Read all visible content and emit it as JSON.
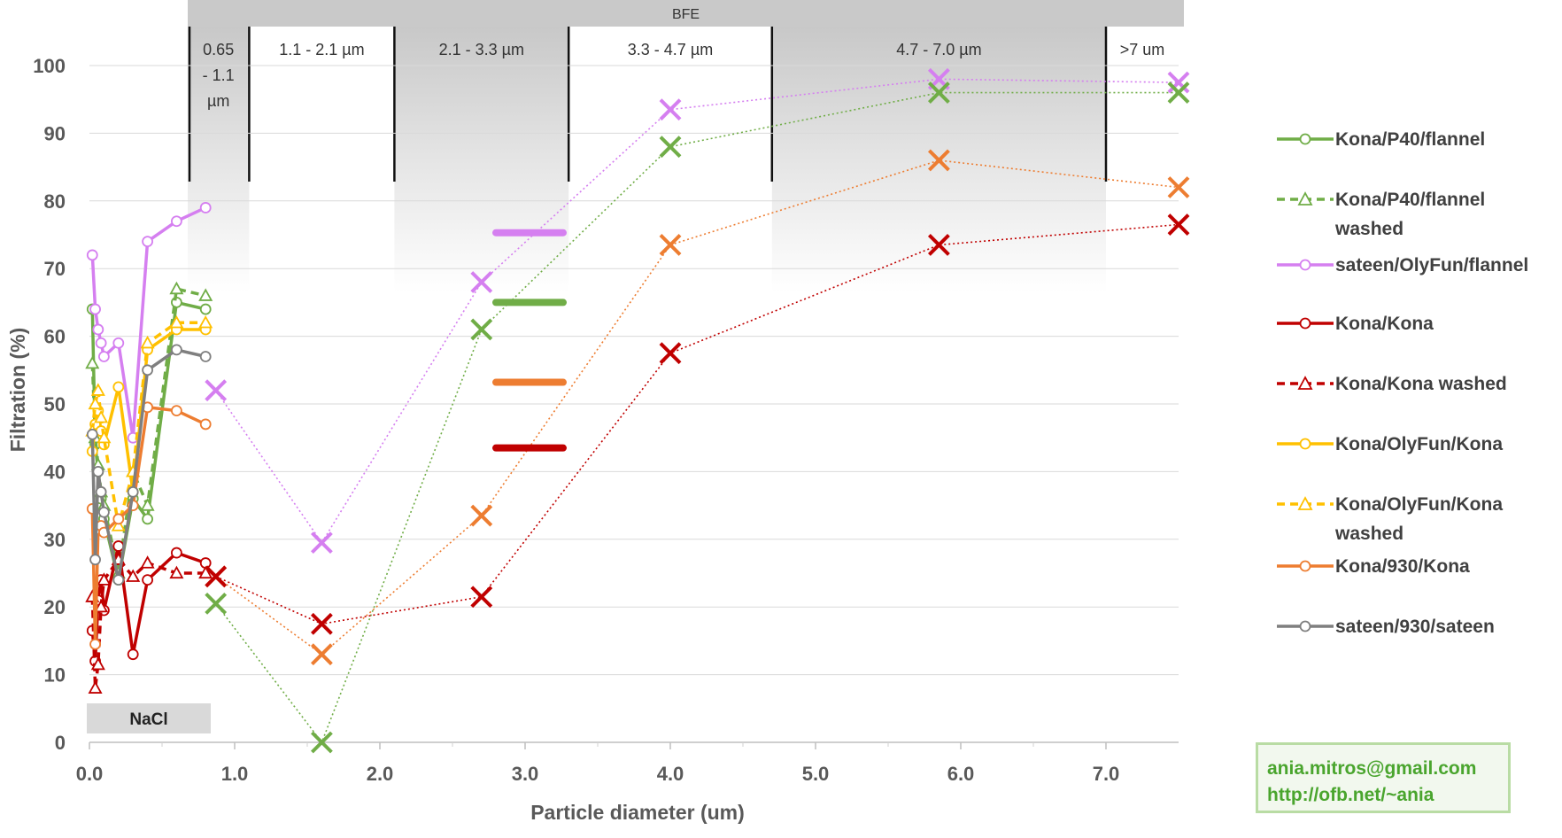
{
  "chart_data": {
    "type": "line",
    "xlabel": "Particle diameter (um)",
    "ylabel": "Filtration (%)",
    "xlim": [
      0,
      7.5
    ],
    "ylim": [
      0,
      100
    ],
    "x_ticks": [
      "0.0",
      "1.0",
      "2.0",
      "3.0",
      "4.0",
      "5.0",
      "6.0",
      "7.0"
    ],
    "y_ticks": [
      "0",
      "10",
      "20",
      "30",
      "40",
      "50",
      "60",
      "70",
      "80",
      "90",
      "100"
    ],
    "grid": "horizontal",
    "bfe_title": "BFE",
    "nacl_label": "NaCl",
    "bfe_bands": [
      {
        "label": [
          "0.65",
          "- 1.1",
          "µm"
        ],
        "from": 0.65,
        "to": 1.1
      },
      {
        "label": [
          "1.1 - 2.1 µm"
        ],
        "from": 1.1,
        "to": 2.1
      },
      {
        "label": [
          "2.1 - 3.3 µm"
        ],
        "from": 2.1,
        "to": 3.3
      },
      {
        "label": [
          "3.3 - 4.7 µm"
        ],
        "from": 3.3,
        "to": 4.7
      },
      {
        "label": [
          "4.7 - 7.0 µm"
        ],
        "from": 4.7,
        "to": 7.0
      },
      {
        "label": [
          ">7 um"
        ],
        "from": 7.0,
        "to": 7.5
      }
    ],
    "series": [
      {
        "name": "Kona/P40/flannel",
        "color": "#70ad47",
        "style": "solid",
        "marker": "circle",
        "points": [
          [
            0.02,
            64
          ],
          [
            0.04,
            44
          ],
          [
            0.06,
            40
          ],
          [
            0.08,
            36
          ],
          [
            0.1,
            33
          ],
          [
            0.2,
            24
          ],
          [
            0.3,
            36
          ],
          [
            0.4,
            33
          ],
          [
            0.6,
            65
          ],
          [
            0.8,
            64
          ]
        ]
      },
      {
        "name": "Kona/P40/flannel washed",
        "color": "#70ad47",
        "style": "dashed",
        "marker": "triangle",
        "points": [
          [
            0.02,
            56
          ],
          [
            0.04,
            45
          ],
          [
            0.06,
            41
          ],
          [
            0.08,
            37
          ],
          [
            0.1,
            35
          ],
          [
            0.2,
            25
          ],
          [
            0.3,
            40
          ],
          [
            0.4,
            35
          ],
          [
            0.6,
            67
          ],
          [
            0.8,
            66
          ]
        ]
      },
      {
        "name": "sateen/OlyFun/flannel",
        "color": "#d57ff0",
        "style": "solid",
        "marker": "circle",
        "points": [
          [
            0.02,
            72
          ],
          [
            0.04,
            64
          ],
          [
            0.06,
            61
          ],
          [
            0.08,
            59
          ],
          [
            0.1,
            57
          ],
          [
            0.2,
            59
          ],
          [
            0.3,
            45
          ],
          [
            0.4,
            74
          ],
          [
            0.6,
            77
          ],
          [
            0.8,
            79
          ]
        ]
      },
      {
        "name": "Kona/Kona",
        "color": "#c00000",
        "style": "solid",
        "marker": "circle",
        "points": [
          [
            0.02,
            16.5
          ],
          [
            0.04,
            12
          ],
          [
            0.06,
            21
          ],
          [
            0.08,
            24
          ],
          [
            0.1,
            19.5
          ],
          [
            0.2,
            29
          ],
          [
            0.3,
            13
          ],
          [
            0.4,
            24
          ],
          [
            0.6,
            28
          ],
          [
            0.8,
            26.5
          ]
        ]
      },
      {
        "name": "Kona/Kona washed",
        "color": "#c00000",
        "style": "dashed",
        "marker": "triangle",
        "points": [
          [
            0.02,
            21.5
          ],
          [
            0.04,
            8
          ],
          [
            0.06,
            11.5
          ],
          [
            0.08,
            20
          ],
          [
            0.1,
            24
          ],
          [
            0.2,
            27
          ],
          [
            0.3,
            24.5
          ],
          [
            0.4,
            26.5
          ],
          [
            0.6,
            25
          ],
          [
            0.8,
            25
          ]
        ]
      },
      {
        "name": "Kona/OlyFun/Kona",
        "color": "#ffc000",
        "style": "solid",
        "marker": "circle",
        "points": [
          [
            0.02,
            43
          ],
          [
            0.04,
            47
          ],
          [
            0.06,
            49
          ],
          [
            0.08,
            46
          ],
          [
            0.1,
            44
          ],
          [
            0.2,
            52.5
          ],
          [
            0.3,
            37
          ],
          [
            0.4,
            58
          ],
          [
            0.6,
            61
          ],
          [
            0.8,
            61
          ]
        ]
      },
      {
        "name": "Kona/OlyFun/Kona washed",
        "color": "#ffc000",
        "style": "dashed",
        "marker": "triangle",
        "points": [
          [
            0.02,
            46
          ],
          [
            0.04,
            50
          ],
          [
            0.06,
            52
          ],
          [
            0.08,
            48
          ],
          [
            0.1,
            45
          ],
          [
            0.2,
            32
          ],
          [
            0.3,
            40
          ],
          [
            0.4,
            59
          ],
          [
            0.6,
            62
          ],
          [
            0.8,
            62
          ]
        ]
      },
      {
        "name": "Kona/930/Kona",
        "color": "#ed7d31",
        "style": "solid",
        "marker": "circle",
        "points": [
          [
            0.02,
            34.5
          ],
          [
            0.04,
            14.5
          ],
          [
            0.06,
            31.5
          ],
          [
            0.08,
            32
          ],
          [
            0.1,
            31
          ],
          [
            0.2,
            33
          ],
          [
            0.3,
            35
          ],
          [
            0.4,
            49.5
          ],
          [
            0.6,
            49
          ],
          [
            0.8,
            47
          ]
        ]
      },
      {
        "name": "sateen/930/sateen",
        "color": "#7f7f7f",
        "style": "solid",
        "marker": "circle",
        "points": [
          [
            0.02,
            45.5
          ],
          [
            0.04,
            27
          ],
          [
            0.06,
            40
          ],
          [
            0.08,
            37
          ],
          [
            0.1,
            34
          ],
          [
            0.2,
            24
          ],
          [
            0.3,
            37
          ],
          [
            0.4,
            55
          ],
          [
            0.6,
            58
          ],
          [
            0.8,
            57
          ]
        ]
      }
    ],
    "bfe_series": [
      {
        "color": "#d57ff0",
        "points": [
          [
            0.87,
            52
          ],
          [
            1.6,
            29.5
          ],
          [
            2.7,
            68
          ],
          [
            4.0,
            93.5
          ],
          [
            5.85,
            98
          ],
          [
            7.5,
            97.5
          ]
        ]
      },
      {
        "color": "#70ad47",
        "points": [
          [
            0.87,
            20.5
          ],
          [
            1.6,
            0
          ],
          [
            2.7,
            61
          ],
          [
            4.0,
            88
          ],
          [
            5.85,
            96
          ],
          [
            7.5,
            96
          ]
        ]
      },
      {
        "color": "#ed7d31",
        "points": [
          [
            0.87,
            24.5
          ],
          [
            1.6,
            13
          ],
          [
            2.7,
            33.5
          ],
          [
            4.0,
            73.5
          ],
          [
            5.85,
            86
          ],
          [
            7.5,
            82
          ]
        ]
      },
      {
        "color": "#c00000",
        "points": [
          [
            0.87,
            24.5
          ],
          [
            1.6,
            17.5
          ],
          [
            2.7,
            21.5
          ],
          [
            4.0,
            57.5
          ],
          [
            5.85,
            73.5
          ],
          [
            7.5,
            76.5
          ]
        ]
      }
    ],
    "average_bars": [
      {
        "color": "#d57ff0",
        "value": 75.3
      },
      {
        "color": "#70ad47",
        "value": 65
      },
      {
        "color": "#ed7d31",
        "value": 53.2
      },
      {
        "color": "#c00000",
        "value": 43.5
      }
    ]
  },
  "contact": {
    "email": "ania.mitros@gmail.com",
    "url": "http://ofb.net/~ania"
  }
}
